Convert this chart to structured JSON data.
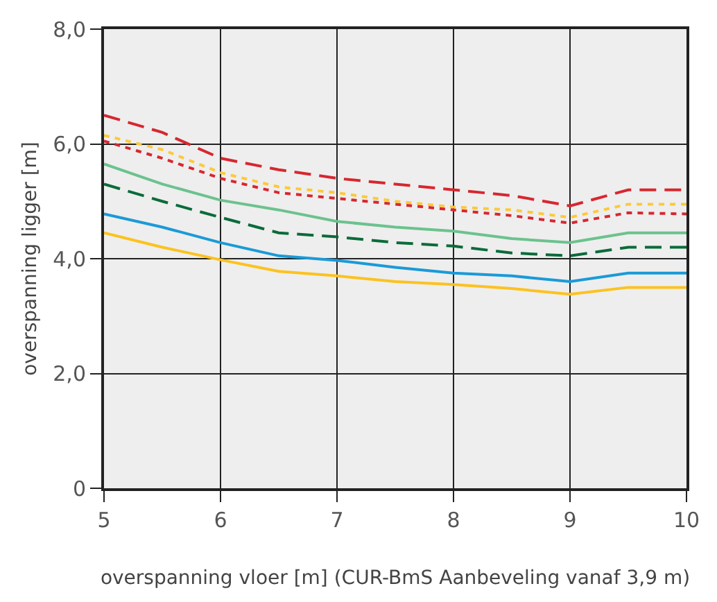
{
  "chart_data": {
    "type": "line",
    "xlabel": "overspanning vloer [m] (CUR-BmS Aanbeveling vanaf 3,9 m)",
    "ylabel": "overspanning ligger [m]",
    "x": [
      5,
      5.5,
      6,
      6.5,
      7,
      7.5,
      8,
      8.5,
      9,
      9.5,
      10
    ],
    "xlim": [
      5,
      10
    ],
    "xticks": [
      5,
      6,
      7,
      8,
      9,
      10
    ],
    "ylim": [
      0,
      8
    ],
    "yticks": [
      {
        "value": 0,
        "label": "0"
      },
      {
        "value": 2,
        "label": "2,0"
      },
      {
        "value": 4,
        "label": "4,0"
      },
      {
        "value": 6,
        "label": "6,0"
      },
      {
        "value": 8,
        "label": "8,0"
      }
    ],
    "grid": true,
    "legend": false,
    "marker": "none",
    "series": [
      {
        "color": "#d7272f",
        "line_style": "dashed",
        "values": [
          6.5,
          6.2,
          5.75,
          5.55,
          5.4,
          5.3,
          5.2,
          5.1,
          4.92,
          5.2,
          5.2
        ]
      },
      {
        "color": "#fcc93a",
        "line_style": "dotted",
        "values": [
          6.15,
          5.9,
          5.5,
          5.25,
          5.15,
          5.0,
          4.9,
          4.85,
          4.72,
          4.95,
          4.95
        ]
      },
      {
        "color": "#d7272f",
        "line_style": "dotted",
        "values": [
          6.05,
          5.75,
          5.4,
          5.15,
          5.05,
          4.95,
          4.85,
          4.75,
          4.62,
          4.8,
          4.78
        ]
      },
      {
        "color": "#6cc28e",
        "line_style": "solid",
        "values": [
          5.65,
          5.3,
          5.02,
          4.85,
          4.65,
          4.55,
          4.48,
          4.35,
          4.28,
          4.45,
          4.45
        ]
      },
      {
        "color": "#0b6b3a",
        "line_style": "dashed",
        "values": [
          5.3,
          5.0,
          4.72,
          4.45,
          4.38,
          4.28,
          4.22,
          4.1,
          4.05,
          4.2,
          4.2
        ]
      },
      {
        "color": "#1a9ad8",
        "line_style": "solid",
        "values": [
          4.78,
          4.55,
          4.28,
          4.05,
          3.97,
          3.85,
          3.75,
          3.7,
          3.6,
          3.75,
          3.75
        ]
      },
      {
        "color": "#fcc21f",
        "line_style": "solid",
        "values": [
          4.45,
          4.2,
          3.98,
          3.78,
          3.7,
          3.6,
          3.55,
          3.48,
          3.38,
          3.5,
          3.5
        ]
      }
    ]
  }
}
